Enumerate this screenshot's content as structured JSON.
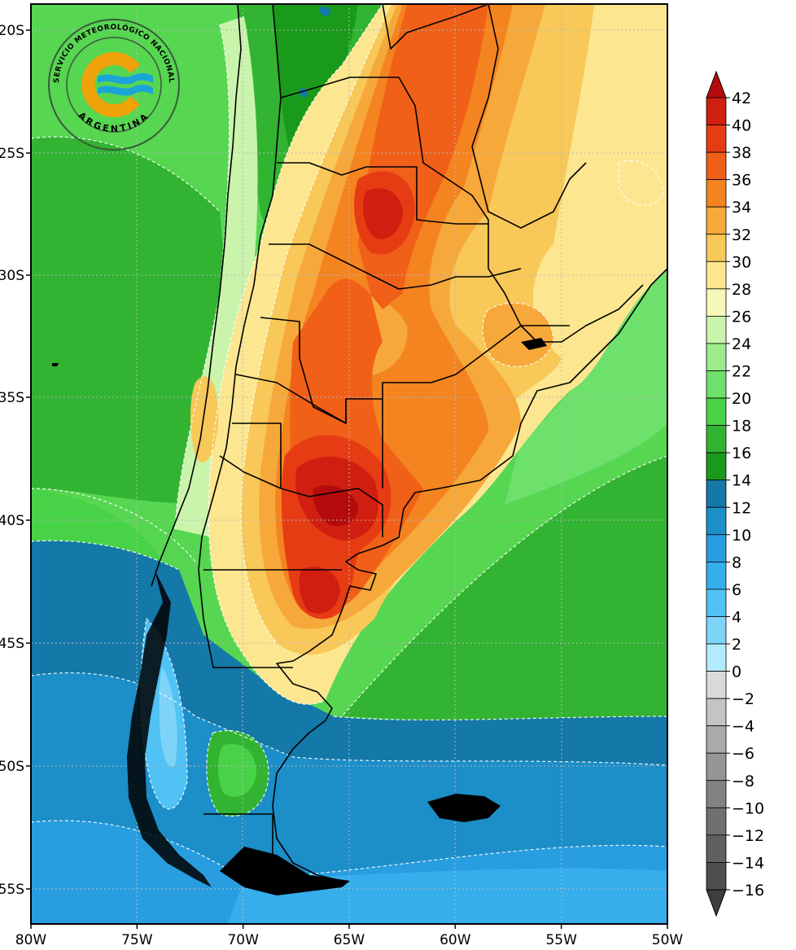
{
  "map": {
    "longitude_labels": [
      "80W",
      "75W",
      "70W",
      "65W",
      "60W",
      "55W",
      "50W"
    ],
    "latitude_labels": [
      "20S",
      "25S",
      "30S",
      "35S",
      "40S",
      "45S",
      "50S",
      "55S"
    ],
    "background_color": "#56d651"
  },
  "logo": {
    "ring_text": "SERVICIO METEOROLÓGICO NACIONAL",
    "country": "ARGENTINA",
    "colors": {
      "ring": "#3a5a3a",
      "orange": "#f0a20a",
      "blue": "#1aa4d8"
    }
  },
  "colorbar": {
    "labels": [
      "42",
      "40",
      "38",
      "36",
      "34",
      "32",
      "30",
      "28",
      "26",
      "24",
      "22",
      "20",
      "18",
      "16",
      "14",
      "12",
      "10",
      "8",
      "6",
      "4",
      "2",
      "0",
      "−2",
      "−4",
      "−6",
      "−8",
      "−10",
      "−12",
      "−14",
      "−16"
    ],
    "colors": [
      "#b40c0c",
      "#d01e10",
      "#e63c14",
      "#f06018",
      "#f48420",
      "#f6a83a",
      "#f8c858",
      "#fce690",
      "#f6f8b8",
      "#caf4ac",
      "#9aec8c",
      "#6ee06c",
      "#48d248",
      "#32b432",
      "#1a9a1a",
      "#1478a8",
      "#1c8ec8",
      "#289ee0",
      "#36aeec",
      "#50c2f4",
      "#7ed4f8",
      "#b2ecfc",
      "#dadada",
      "#c4c4c4",
      "#aaaaaa",
      "#959595",
      "#828282",
      "#707070",
      "#606060",
      "#4e4e4e",
      "#3e3e3e"
    ]
  }
}
